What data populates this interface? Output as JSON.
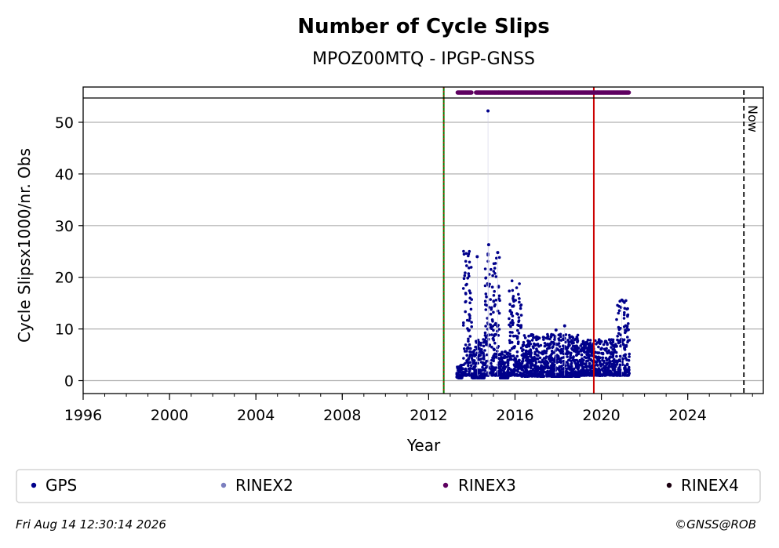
{
  "chart_data": {
    "type": "scatter",
    "title": "Number of Cycle Slips",
    "subtitle": "MPOZ00MTQ - IPGP-GNSS",
    "xlabel": "Year",
    "ylabel": "Cycle Slipsx1000/nr. Obs",
    "xlim": [
      1996,
      2027.5
    ],
    "ylim": [
      -2.5,
      54.7
    ],
    "x_ticks": [
      "1996",
      "2000",
      "2004",
      "2008",
      "2012",
      "2016",
      "2020",
      "2024"
    ],
    "y_ticks": [
      "0",
      "10",
      "20",
      "30",
      "40",
      "50"
    ],
    "grid": "horizontal",
    "legend_placement": "bottom",
    "legend": [
      {
        "name": "GPS",
        "color": "#00008b"
      },
      {
        "name": "RINEX2",
        "color": "#7b7fbf"
      },
      {
        "name": "RINEX3",
        "color": "#5e0060"
      },
      {
        "name": "RINEX4",
        "color": "#1a0010"
      }
    ],
    "vertical_lines": [
      {
        "x": 2012.7,
        "color": "#008000",
        "style": "solid-dotted-red"
      },
      {
        "x": 2019.65,
        "color": "#cc0000",
        "style": "solid"
      },
      {
        "x": 2026.6,
        "color": "#000000",
        "style": "dashed",
        "label": "Now"
      }
    ],
    "rinex3_availability": [
      [
        2013.35,
        2014.0
      ],
      [
        2014.2,
        2021.3
      ]
    ],
    "series": [
      {
        "name": "GPS",
        "color": "#00008b",
        "segments": [
          {
            "x0": 2013.3,
            "x1": 2013.6,
            "peak_x": 2013.8,
            "lo": 0.5,
            "hi": 3
          },
          {
            "x0": 2013.6,
            "x1": 2014.0,
            "lo": 1,
            "hi": 25.5
          },
          {
            "x0": 2014.0,
            "x1": 2014.6,
            "lo": 0.5,
            "hi": 8
          },
          {
            "x0": 2014.6,
            "x1": 2015.3,
            "lo": 1,
            "hi": 26
          },
          {
            "x0": 2015.3,
            "x1": 2015.7,
            "lo": 0.5,
            "hi": 6
          },
          {
            "x0": 2015.7,
            "x1": 2016.3,
            "lo": 1,
            "hi": 19.5
          },
          {
            "x0": 2016.3,
            "x1": 2019.0,
            "lo": 0.8,
            "hi": 9
          },
          {
            "x0": 2019.0,
            "x1": 2020.7,
            "lo": 1,
            "hi": 8
          },
          {
            "x0": 2020.7,
            "x1": 2021.3,
            "lo": 1,
            "hi": 15.5
          }
        ],
        "outliers": [
          {
            "x": 2014.75,
            "y": 52.2
          },
          {
            "x": 2014.78,
            "y": 26.3
          },
          {
            "x": 2015.2,
            "y": 24.8
          },
          {
            "x": 2014.25,
            "y": 24
          },
          {
            "x": 2017.9,
            "y": 9.8
          },
          {
            "x": 2018.3,
            "y": 10.6
          },
          {
            "x": 2020.95,
            "y": 15.6
          }
        ]
      }
    ]
  },
  "footer": {
    "timestamp": "Fri Aug 14 12:30:14 2026",
    "credit": "©GNSS@ROB"
  },
  "now_label": "Now"
}
